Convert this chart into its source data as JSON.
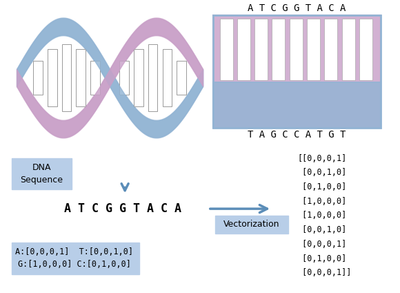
{
  "dna_sequence_top": "A T C G G T A C A",
  "dna_sequence_bottom": "T A G C C A T G T",
  "dna_sequence_linear": "A T C G G T A C A",
  "matrix_lines": [
    "[[0,0,0,1]",
    " [0,0,1,0]",
    " [0,1,0,0]",
    " [1,0,0,0]",
    " [1,0,0,0]",
    " [0,0,1,0]",
    " [0,0,0,1]",
    " [0,1,0,0]",
    " [0,0,0,1]]"
  ],
  "label_box_dna": "DNA\nSequence",
  "label_box_vect": "Vectorization",
  "encoding_line1": "A:[0,0,0,1]  T:[0,0,1,0]",
  "encoding_line2": "G:[1,0,0,0] C:[0,1,0,0]",
  "color_pink": "#C9A0C8",
  "color_blue": "#92B4D4",
  "color_box": "#B8CEE8",
  "color_arrow": "#5B8DB8",
  "num_bars": 9,
  "bg_color": "#ffffff"
}
